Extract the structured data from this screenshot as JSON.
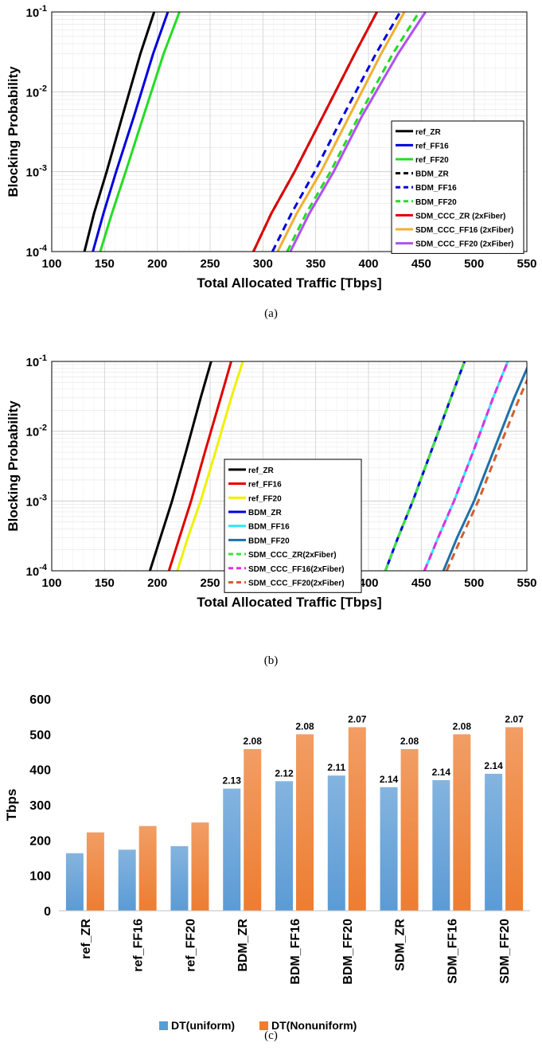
{
  "captions": [
    "(a)",
    "(b)",
    "(c)"
  ],
  "chart_data": [
    {
      "type": "line",
      "ylabel": "Blocking Probability",
      "xlabel": "Total Allocated Traffic [Tbps]",
      "xlim": [
        100,
        550
      ],
      "ylim": [
        0.0001,
        0.1
      ],
      "yscale": "log",
      "xticks": [
        "100",
        "150",
        "200",
        "250",
        "300",
        "350",
        "400",
        "450",
        "500",
        "550"
      ],
      "yticks": [
        {
          "base": "10",
          "exp": "-4"
        },
        {
          "base": "10",
          "exp": "-3"
        },
        {
          "base": "10",
          "exp": "-2"
        },
        {
          "base": "10",
          "exp": "-1"
        }
      ],
      "grid": true,
      "legend_position": "bottom-right",
      "series": [
        {
          "name": "ref_ZR",
          "color": "#000000",
          "style": "solid",
          "x": [
            131,
            140,
            152,
            167,
            184,
            197
          ],
          "y": [
            0.0001,
            0.0003,
            0.001,
            0.005,
            0.03,
            0.1
          ]
        },
        {
          "name": "ref_FF16",
          "color": "#0000dd",
          "style": "solid",
          "x": [
            139,
            149,
            161,
            178,
            196,
            210
          ],
          "y": [
            0.0001,
            0.0003,
            0.001,
            0.005,
            0.03,
            0.1
          ]
        },
        {
          "name": "ref_FF20",
          "color": "#22dd22",
          "style": "solid",
          "x": [
            146,
            157,
            170,
            187,
            206,
            221
          ],
          "y": [
            0.0001,
            0.0003,
            0.001,
            0.005,
            0.03,
            0.1
          ]
        },
        {
          "name": "BDM_ZR",
          "color": "#000000",
          "style": "dash",
          "x": [
            291,
            308,
            330,
            357,
            387,
            408
          ],
          "y": [
            0.0001,
            0.0003,
            0.001,
            0.005,
            0.03,
            0.1
          ]
        },
        {
          "name": "BDM_FF16",
          "color": "#0000dd",
          "style": "dash",
          "x": [
            309,
            327,
            349,
            376,
            407,
            430
          ],
          "y": [
            0.0001,
            0.0003,
            0.001,
            0.005,
            0.03,
            0.1
          ]
        },
        {
          "name": "BDM_FF20",
          "color": "#22dd22",
          "style": "dash",
          "x": [
            323,
            341,
            364,
            391,
            423,
            448
          ],
          "y": [
            0.0001,
            0.0003,
            0.001,
            0.005,
            0.03,
            0.1
          ]
        },
        {
          "name": "SDM_CCC_ZR (2xFiber)",
          "color": "#e00000",
          "style": "solid",
          "x": [
            291,
            308,
            330,
            357,
            387,
            408
          ],
          "y": [
            0.0001,
            0.0003,
            0.001,
            0.005,
            0.03,
            0.1
          ]
        },
        {
          "name": "SDM_CCC_FF16 (2xFiber)",
          "color": "#f0b030",
          "style": "solid",
          "x": [
            314,
            332,
            355,
            382,
            412,
            434
          ],
          "y": [
            0.0001,
            0.0003,
            0.001,
            0.005,
            0.03,
            0.1
          ]
        },
        {
          "name": "SDM_CCC_FF20 (2xFiber)",
          "color": "#b050f0",
          "style": "solid",
          "x": [
            326,
            344,
            367,
            394,
            428,
            454
          ],
          "y": [
            0.0001,
            0.0003,
            0.001,
            0.005,
            0.03,
            0.1
          ]
        }
      ]
    },
    {
      "type": "line",
      "ylabel": "Blocking Probability",
      "xlabel": "Total Allocated Traffic [Tbps]",
      "xlim": [
        100,
        550
      ],
      "ylim": [
        0.0001,
        0.1
      ],
      "yscale": "log",
      "xticks": [
        "100",
        "150",
        "200",
        "250",
        "300",
        "350",
        "400",
        "450",
        "500",
        "550"
      ],
      "yticks": [
        {
          "base": "10",
          "exp": "-4"
        },
        {
          "base": "10",
          "exp": "-3"
        },
        {
          "base": "10",
          "exp": "-2"
        },
        {
          "base": "10",
          "exp": "-1"
        }
      ],
      "grid": true,
      "legend_position": "center",
      "series": [
        {
          "name": "ref_ZR",
          "color": "#000000",
          "style": "solid",
          "x": [
            193,
            203,
            214,
            227,
            241,
            251
          ],
          "y": [
            0.0001,
            0.0003,
            0.001,
            0.005,
            0.03,
            0.1
          ]
        },
        {
          "name": "ref_FF16",
          "color": "#e00000",
          "style": "solid",
          "x": [
            211,
            221,
            232,
            245,
            260,
            270
          ],
          "y": [
            0.0001,
            0.0003,
            0.001,
            0.005,
            0.03,
            0.1
          ]
        },
        {
          "name": "ref_FF20",
          "color": "#f0f000",
          "style": "solid",
          "x": [
            219,
            229,
            241,
            255,
            270,
            281
          ],
          "y": [
            0.0001,
            0.0003,
            0.001,
            0.005,
            0.03,
            0.1
          ]
        },
        {
          "name": "BDM_ZR",
          "color": "#0000dd",
          "style": "solid",
          "x": [
            416,
            428,
            442,
            459,
            478,
            491
          ],
          "y": [
            0.0001,
            0.0003,
            0.001,
            0.005,
            0.03,
            0.1
          ]
        },
        {
          "name": "BDM_FF16",
          "color": "#30e8f8",
          "style": "solid",
          "x": [
            453,
            466,
            481,
            499,
            518,
            532
          ],
          "y": [
            0.0001,
            0.0003,
            0.001,
            0.005,
            0.03,
            0.1
          ]
        },
        {
          "name": "BDM_FF20",
          "color": "#2070a8",
          "style": "solid",
          "x": [
            471,
            484,
            500,
            518,
            538,
            553
          ],
          "y": [
            0.0001,
            0.0003,
            0.001,
            0.005,
            0.03,
            0.1
          ]
        },
        {
          "name": "SDM_CCC_ZR(2xFiber)",
          "color": "#40e040",
          "style": "dash",
          "x": [
            416,
            428,
            442,
            459,
            478,
            491
          ],
          "y": [
            0.0001,
            0.0003,
            0.001,
            0.005,
            0.03,
            0.1
          ]
        },
        {
          "name": "SDM_CCC_FF16(2xFiber)",
          "color": "#e030e0",
          "style": "dash",
          "x": [
            453,
            466,
            481,
            499,
            518,
            532
          ],
          "y": [
            0.0001,
            0.0003,
            0.001,
            0.005,
            0.03,
            0.1
          ]
        },
        {
          "name": "SDM_CCC_FF20(2xFiber)",
          "color": "#d06030",
          "style": "dash",
          "x": [
            474,
            488,
            504,
            522,
            543,
            558
          ],
          "y": [
            0.0001,
            0.0003,
            0.001,
            0.005,
            0.03,
            0.1
          ]
        }
      ]
    },
    {
      "type": "bar",
      "ylabel": "Tbps",
      "ylim": [
        0,
        600
      ],
      "yticks": [
        "0",
        "100",
        "200",
        "300",
        "400",
        "500",
        "600"
      ],
      "categories": [
        "ref_ZR",
        "ref_FF16",
        "ref_FF20",
        "BDM_ZR",
        "BDM_FF16",
        "BDM_FF20",
        "SDM_ZR",
        "SDM_FF16",
        "SDM_FF20"
      ],
      "legend_position": "bottom",
      "series": [
        {
          "name": "DT(uniform)",
          "color": "#5b9bd5",
          "values": [
            163,
            173,
            183,
            346,
            367,
            383,
            350,
            370,
            388
          ],
          "labels": [
            "",
            "",
            "",
            "2.13",
            "2.12",
            "2.11",
            "2.14",
            "2.14",
            "2.14"
          ]
        },
        {
          "name": "DT(Nonuniform)",
          "color": "#ed7d31",
          "values": [
            222,
            240,
            250,
            458,
            500,
            520,
            458,
            500,
            520
          ],
          "labels": [
            "",
            "",
            "",
            "2.08",
            "2.08",
            "2.07",
            "2.08",
            "2.08",
            "2.07"
          ]
        }
      ]
    }
  ]
}
